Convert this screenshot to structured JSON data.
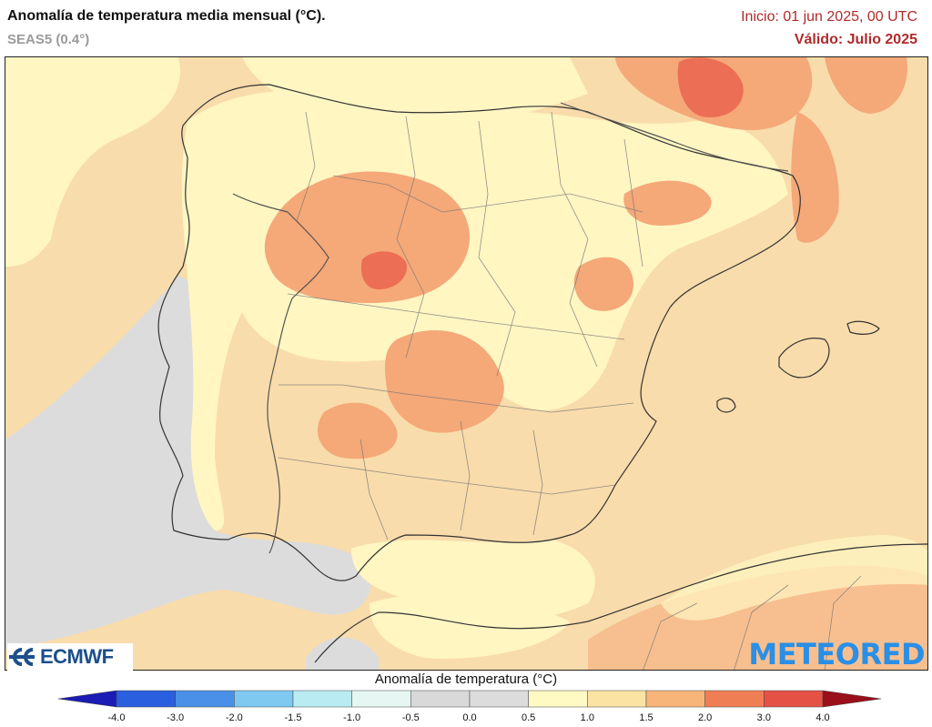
{
  "header": {
    "title": "Anomalía de temperatura media mensual (°C).",
    "subtitle": "SEAS5 (0.4°)",
    "init": "Inicio: 01 jun 2025, 00 UTC",
    "valid": "Válido: Julio 2025"
  },
  "logos": {
    "left": "ECMWF",
    "right": "METEORED"
  },
  "legend": {
    "title": "Anomalía de temperatura (°C)",
    "ticks": [
      "-4.0",
      "-3.0",
      "-2.0",
      "-1.5",
      "-1.0",
      "-0.5",
      "0.0",
      "0.5",
      "1.0",
      "1.5",
      "2.0",
      "3.0",
      "4.0"
    ],
    "colors": [
      "#2222cc",
      "#2a5fe0",
      "#4a90e8",
      "#7fc8f0",
      "#b8ecf2",
      "#e6f6f2",
      "#d9d9d9",
      "#dcdcdc",
      "#fff9c4",
      "#fbe3a4",
      "#f7b57a",
      "#f07e55",
      "#e55245",
      "#c9222b",
      "#a8101e"
    ],
    "arrow_low": "#1b1bb5",
    "arrow_high": "#9a0f1a"
  },
  "colors": {
    "sea_base": "#f9ddaa",
    "anom_0_5": "#dcdcdc",
    "anom_0_5_1": "#fff6c2",
    "anom_1_1_5": "#f9d9a3",
    "anom_1_5_2": "#f5a878",
    "anom_2_3": "#ec6e55"
  }
}
